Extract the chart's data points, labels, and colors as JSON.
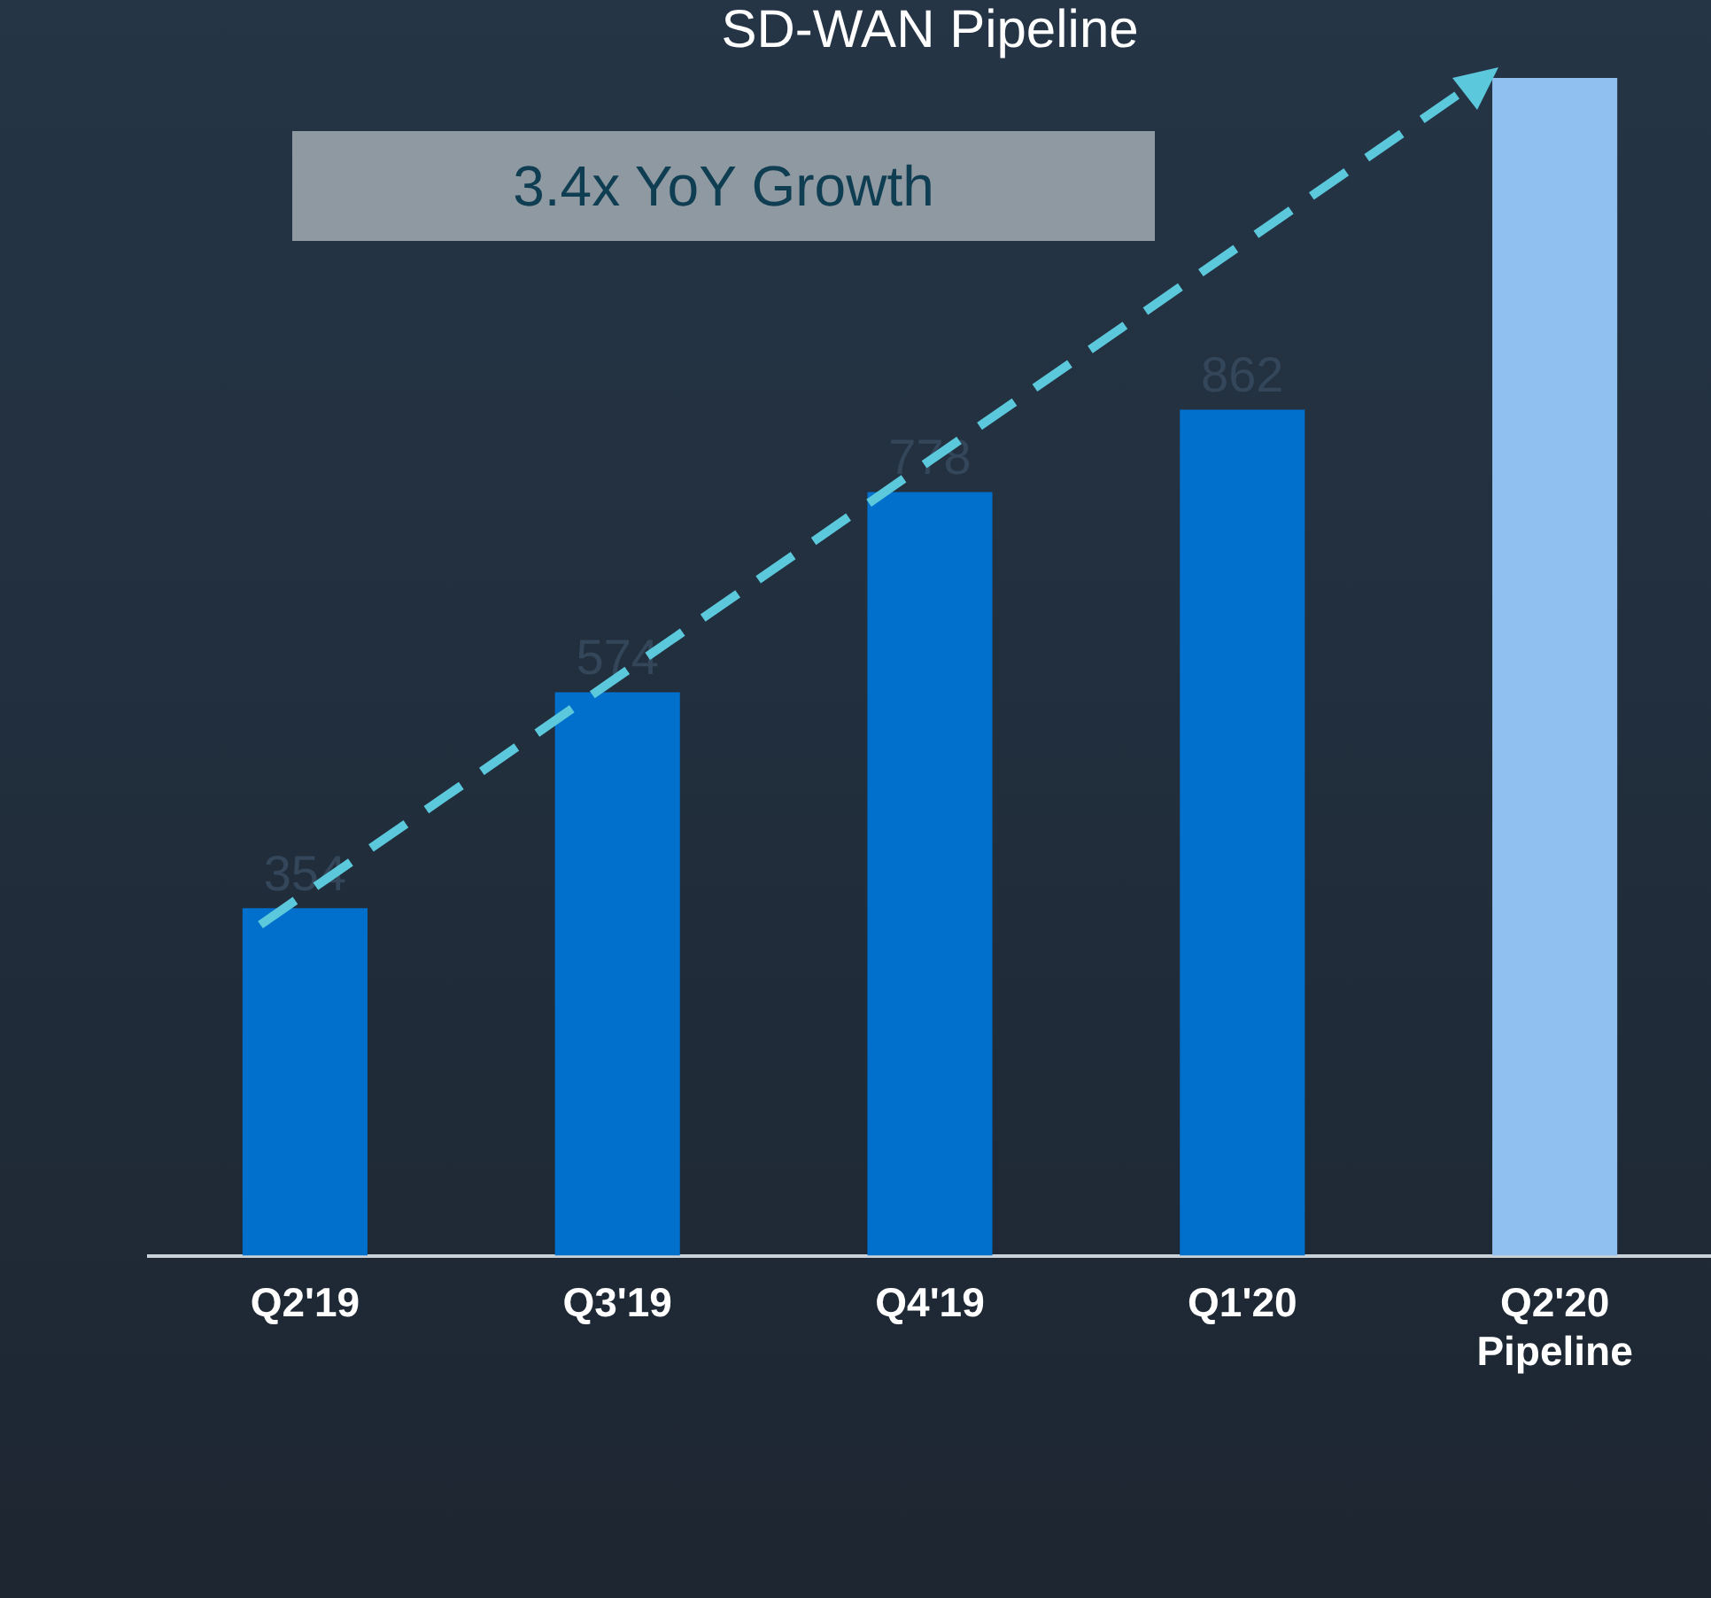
{
  "chart_data": {
    "type": "bar",
    "title": "SD-WAN Pipeline",
    "categories": [
      "Q2'19",
      "Q3'19",
      "Q4'19",
      "Q1'20",
      "Q2'20 Pipeline"
    ],
    "values": [
      354,
      574,
      778,
      862,
      1200
    ],
    "colors": [
      "#0070cc",
      "#0070cc",
      "#0070cc",
      "#0070cc",
      "#8fc0f0"
    ],
    "value_labels": [
      "354",
      "574",
      "778",
      "862",
      null
    ],
    "ylim": [
      0,
      1200
    ],
    "tick_labels": "x",
    "grid": false,
    "legend": false,
    "annotations": [
      "3.4x YoY Growth"
    ]
  }
}
